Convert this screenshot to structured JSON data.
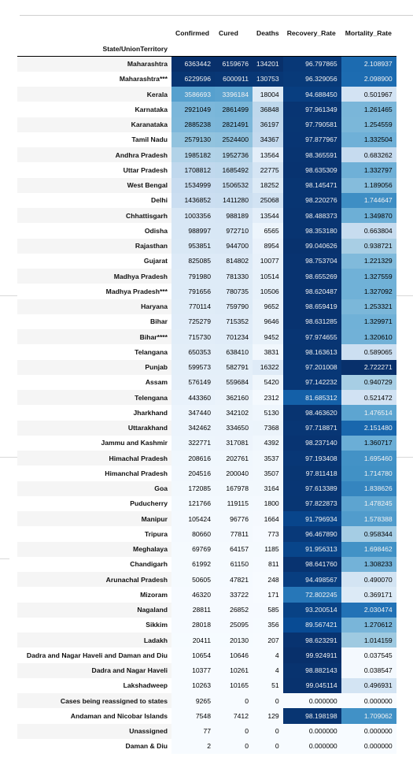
{
  "table": {
    "columns": [
      "Confirmed",
      "Cured",
      "Deaths",
      "Recovery_Rate",
      "Mortality_Rate"
    ],
    "index_name": "State/UnionTerritory",
    "colormap": {
      "light": "#f7fbff",
      "dark": "#08306b"
    },
    "rows": [
      {
        "state": "Maharashtra",
        "confirmed": 6363442,
        "cured": 6159676,
        "deaths": 134201,
        "recovery": "96.797865",
        "mortality": "2.108937"
      },
      {
        "state": "Maharashtra***",
        "confirmed": 6229596,
        "cured": 6000911,
        "deaths": 130753,
        "recovery": "96.329056",
        "mortality": "2.098900"
      },
      {
        "state": "Kerala",
        "confirmed": 3586693,
        "cured": 3396184,
        "deaths": 18004,
        "recovery": "94.688450",
        "mortality": "0.501967"
      },
      {
        "state": "Karnataka",
        "confirmed": 2921049,
        "cured": 2861499,
        "deaths": 36848,
        "recovery": "97.961349",
        "mortality": "1.261465"
      },
      {
        "state": "Karanataka",
        "confirmed": 2885238,
        "cured": 2821491,
        "deaths": 36197,
        "recovery": "97.790581",
        "mortality": "1.254559"
      },
      {
        "state": "Tamil Nadu",
        "confirmed": 2579130,
        "cured": 2524400,
        "deaths": 34367,
        "recovery": "97.877967",
        "mortality": "1.332504"
      },
      {
        "state": "Andhra Pradesh",
        "confirmed": 1985182,
        "cured": 1952736,
        "deaths": 13564,
        "recovery": "98.365591",
        "mortality": "0.683262"
      },
      {
        "state": "Uttar Pradesh",
        "confirmed": 1708812,
        "cured": 1685492,
        "deaths": 22775,
        "recovery": "98.635309",
        "mortality": "1.332797"
      },
      {
        "state": "West Bengal",
        "confirmed": 1534999,
        "cured": 1506532,
        "deaths": 18252,
        "recovery": "98.145471",
        "mortality": "1.189056"
      },
      {
        "state": "Delhi",
        "confirmed": 1436852,
        "cured": 1411280,
        "deaths": 25068,
        "recovery": "98.220276",
        "mortality": "1.744647"
      },
      {
        "state": "Chhattisgarh",
        "confirmed": 1003356,
        "cured": 988189,
        "deaths": 13544,
        "recovery": "98.488373",
        "mortality": "1.349870"
      },
      {
        "state": "Odisha",
        "confirmed": 988997,
        "cured": 972710,
        "deaths": 6565,
        "recovery": "98.353180",
        "mortality": "0.663804"
      },
      {
        "state": "Rajasthan",
        "confirmed": 953851,
        "cured": 944700,
        "deaths": 8954,
        "recovery": "99.040626",
        "mortality": "0.938721"
      },
      {
        "state": "Gujarat",
        "confirmed": 825085,
        "cured": 814802,
        "deaths": 10077,
        "recovery": "98.753704",
        "mortality": "1.221329"
      },
      {
        "state": "Madhya Pradesh",
        "confirmed": 791980,
        "cured": 781330,
        "deaths": 10514,
        "recovery": "98.655269",
        "mortality": "1.327559"
      },
      {
        "state": "Madhya Pradesh***",
        "confirmed": 791656,
        "cured": 780735,
        "deaths": 10506,
        "recovery": "98.620487",
        "mortality": "1.327092"
      },
      {
        "state": "Haryana",
        "confirmed": 770114,
        "cured": 759790,
        "deaths": 9652,
        "recovery": "98.659419",
        "mortality": "1.253321"
      },
      {
        "state": "Bihar",
        "confirmed": 725279,
        "cured": 715352,
        "deaths": 9646,
        "recovery": "98.631285",
        "mortality": "1.329971"
      },
      {
        "state": "Bihar****",
        "confirmed": 715730,
        "cured": 701234,
        "deaths": 9452,
        "recovery": "97.974655",
        "mortality": "1.320610"
      },
      {
        "state": "Telangana",
        "confirmed": 650353,
        "cured": 638410,
        "deaths": 3831,
        "recovery": "98.163613",
        "mortality": "0.589065"
      },
      {
        "state": "Punjab",
        "confirmed": 599573,
        "cured": 582791,
        "deaths": 16322,
        "recovery": "97.201008",
        "mortality": "2.722271"
      },
      {
        "state": "Assam",
        "confirmed": 576149,
        "cured": 559684,
        "deaths": 5420,
        "recovery": "97.142232",
        "mortality": "0.940729"
      },
      {
        "state": "Telengana",
        "confirmed": 443360,
        "cured": 362160,
        "deaths": 2312,
        "recovery": "81.685312",
        "mortality": "0.521472"
      },
      {
        "state": "Jharkhand",
        "confirmed": 347440,
        "cured": 342102,
        "deaths": 5130,
        "recovery": "98.463620",
        "mortality": "1.476514"
      },
      {
        "state": "Uttarakhand",
        "confirmed": 342462,
        "cured": 334650,
        "deaths": 7368,
        "recovery": "97.718871",
        "mortality": "2.151480"
      },
      {
        "state": "Jammu and Kashmir",
        "confirmed": 322771,
        "cured": 317081,
        "deaths": 4392,
        "recovery": "98.237140",
        "mortality": "1.360717"
      },
      {
        "state": "Himachal Pradesh",
        "confirmed": 208616,
        "cured": 202761,
        "deaths": 3537,
        "recovery": "97.193408",
        "mortality": "1.695460"
      },
      {
        "state": "Himanchal Pradesh",
        "confirmed": 204516,
        "cured": 200040,
        "deaths": 3507,
        "recovery": "97.811418",
        "mortality": "1.714780"
      },
      {
        "state": "Goa",
        "confirmed": 172085,
        "cured": 167978,
        "deaths": 3164,
        "recovery": "97.613389",
        "mortality": "1.838626"
      },
      {
        "state": "Puducherry",
        "confirmed": 121766,
        "cured": 119115,
        "deaths": 1800,
        "recovery": "97.822873",
        "mortality": "1.478245"
      },
      {
        "state": "Manipur",
        "confirmed": 105424,
        "cured": 96776,
        "deaths": 1664,
        "recovery": "91.796934",
        "mortality": "1.578388"
      },
      {
        "state": "Tripura",
        "confirmed": 80660,
        "cured": 77811,
        "deaths": 773,
        "recovery": "96.467890",
        "mortality": "0.958344"
      },
      {
        "state": "Meghalaya",
        "confirmed": 69769,
        "cured": 64157,
        "deaths": 1185,
        "recovery": "91.956313",
        "mortality": "1.698462"
      },
      {
        "state": "Chandigarh",
        "confirmed": 61992,
        "cured": 61150,
        "deaths": 811,
        "recovery": "98.641760",
        "mortality": "1.308233"
      },
      {
        "state": "Arunachal Pradesh",
        "confirmed": 50605,
        "cured": 47821,
        "deaths": 248,
        "recovery": "94.498567",
        "mortality": "0.490070"
      },
      {
        "state": "Mizoram",
        "confirmed": 46320,
        "cured": 33722,
        "deaths": 171,
        "recovery": "72.802245",
        "mortality": "0.369171"
      },
      {
        "state": "Nagaland",
        "confirmed": 28811,
        "cured": 26852,
        "deaths": 585,
        "recovery": "93.200514",
        "mortality": "2.030474"
      },
      {
        "state": "Sikkim",
        "confirmed": 28018,
        "cured": 25095,
        "deaths": 356,
        "recovery": "89.567421",
        "mortality": "1.270612"
      },
      {
        "state": "Ladakh",
        "confirmed": 20411,
        "cured": 20130,
        "deaths": 207,
        "recovery": "98.623291",
        "mortality": "1.014159"
      },
      {
        "state": "Dadra and Nagar Haveli and Daman and Diu",
        "confirmed": 10654,
        "cured": 10646,
        "deaths": 4,
        "recovery": "99.924911",
        "mortality": "0.037545"
      },
      {
        "state": "Dadra and Nagar Haveli",
        "confirmed": 10377,
        "cured": 10261,
        "deaths": 4,
        "recovery": "98.882143",
        "mortality": "0.038547"
      },
      {
        "state": "Lakshadweep",
        "confirmed": 10263,
        "cured": 10165,
        "deaths": 51,
        "recovery": "99.045114",
        "mortality": "0.496931"
      },
      {
        "state": "Cases being reassigned to states",
        "confirmed": 9265,
        "cured": 0,
        "deaths": 0,
        "recovery": "0.000000",
        "mortality": "0.000000"
      },
      {
        "state": "Andaman and Nicobar Islands",
        "confirmed": 7548,
        "cured": 7412,
        "deaths": 129,
        "recovery": "98.198198",
        "mortality": "1.709062"
      },
      {
        "state": "Unassigned",
        "confirmed": 77,
        "cured": 0,
        "deaths": 0,
        "recovery": "0.000000",
        "mortality": "0.000000"
      },
      {
        "state": "Daman & Diu",
        "confirmed": 2,
        "cured": 0,
        "deaths": 0,
        "recovery": "0.000000",
        "mortality": "0.000000"
      }
    ]
  }
}
